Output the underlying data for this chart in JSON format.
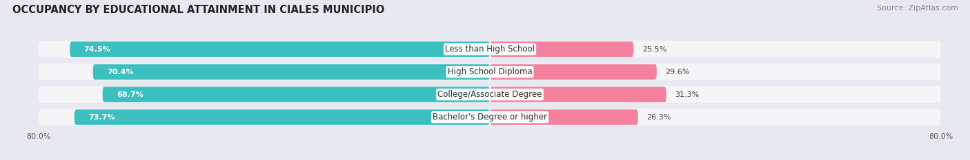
{
  "title": "OCCUPANCY BY EDUCATIONAL ATTAINMENT IN CIALES MUNICIPIO",
  "source": "Source: ZipAtlas.com",
  "categories": [
    "Less than High School",
    "High School Diploma",
    "College/Associate Degree",
    "Bachelor's Degree or higher"
  ],
  "owner_values": [
    74.5,
    70.4,
    68.7,
    73.7
  ],
  "renter_values": [
    25.5,
    29.6,
    31.3,
    26.3
  ],
  "owner_color": "#3bbfbf",
  "renter_color": "#f4829e",
  "xlim_left": -80.0,
  "xlim_right": 80.0,
  "axis_left_label": "80.0%",
  "axis_right_label": "80.0%",
  "background_color": "#e8e8f0",
  "bar_bg_color": "#f5f5f8",
  "title_fontsize": 10.5,
  "source_fontsize": 8,
  "bar_height": 0.68,
  "label_fontsize": 8.5,
  "value_fontsize": 8.0
}
